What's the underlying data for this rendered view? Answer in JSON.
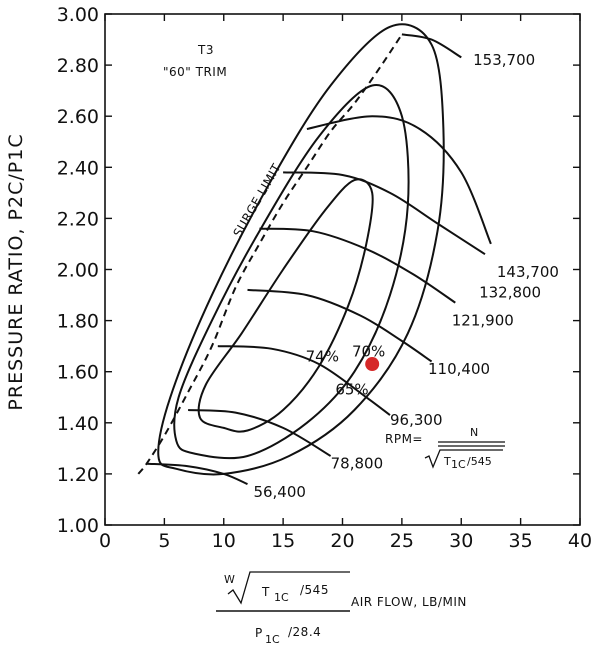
{
  "chart_data": {
    "type": "line",
    "title": "",
    "ylabel": "PRESSURE RATIO, P2C/P1C",
    "xlabel": {
      "main": "AIR FLOW, LB/MIN",
      "numerator_w": "W",
      "numerator_t": "T",
      "numerator_t_sub": "1C",
      "numerator_divisor": "/545",
      "denominator_p": "P",
      "denominator_p_sub": "1C",
      "denominator_divisor": "/28.4"
    },
    "xlim": [
      0,
      40
    ],
    "ylim": [
      1.0,
      3.0
    ],
    "x_ticks": [
      "0",
      "5",
      "10",
      "15",
      "20",
      "25",
      "30",
      "35",
      "40"
    ],
    "y_ticks": [
      "1.00",
      "1.20",
      "1.40",
      "1.60",
      "1.80",
      "2.00",
      "2.20",
      "2.40",
      "2.60",
      "2.80",
      "3.00"
    ],
    "grid": false,
    "annotations": {
      "compressor_line1": "T3",
      "compressor_line2": "\"60\" TRIM",
      "surge_label": "SURGE LIMIT",
      "rpm_lhs": "RPM=",
      "rpm_numerator": "N",
      "rpm_denominator_t": "T",
      "rpm_denominator_sub": "1C",
      "rpm_denominator_divisor": "/545"
    },
    "surge_limit": [
      [
        2.8,
        1.2
      ],
      [
        3.5,
        1.24
      ],
      [
        5,
        1.35
      ],
      [
        7,
        1.52
      ],
      [
        9,
        1.7
      ],
      [
        11,
        1.93
      ],
      [
        13,
        2.1
      ],
      [
        15,
        2.26
      ],
      [
        17,
        2.4
      ],
      [
        19,
        2.54
      ],
      [
        21,
        2.65
      ],
      [
        23,
        2.78
      ],
      [
        25,
        2.92
      ]
    ],
    "speed_lines": [
      {
        "label": "56,400",
        "points": [
          [
            3.5,
            1.24
          ],
          [
            7,
            1.23
          ],
          [
            10,
            1.2
          ],
          [
            12,
            1.16
          ]
        ],
        "label_at": [
          12.5,
          1.13
        ]
      },
      {
        "label": "78,800",
        "points": [
          [
            7,
            1.45
          ],
          [
            11,
            1.44
          ],
          [
            15,
            1.38
          ],
          [
            19,
            1.27
          ]
        ],
        "label_at": [
          19,
          1.24
        ]
      },
      {
        "label": "96,300",
        "points": [
          [
            9.5,
            1.7
          ],
          [
            14,
            1.69
          ],
          [
            18,
            1.63
          ],
          [
            22,
            1.5
          ],
          [
            24,
            1.43
          ]
        ],
        "label_at": [
          24,
          1.41
        ]
      },
      {
        "label": "110,400",
        "points": [
          [
            12,
            1.92
          ],
          [
            17,
            1.9
          ],
          [
            21.5,
            1.82
          ],
          [
            25,
            1.72
          ],
          [
            27.5,
            1.64
          ]
        ],
        "label_at": [
          27.2,
          1.61
        ]
      },
      {
        "label": "121,900",
        "points": [
          [
            13,
            2.16
          ],
          [
            17.5,
            2.15
          ],
          [
            22,
            2.08
          ],
          [
            26,
            1.98
          ],
          [
            29.5,
            1.87
          ]
        ],
        "label_at": [
          29.2,
          1.8
        ]
      },
      {
        "label": "132,800",
        "points": [
          [
            15,
            2.38
          ],
          [
            20,
            2.37
          ],
          [
            24,
            2.3
          ],
          [
            28,
            2.18
          ],
          [
            32,
            2.06
          ]
        ],
        "label_at": [
          31.5,
          1.91
        ]
      },
      {
        "label": "143,700",
        "points": [
          [
            17,
            2.55
          ],
          [
            22.5,
            2.6
          ],
          [
            26.5,
            2.55
          ],
          [
            30,
            2.38
          ],
          [
            32.5,
            2.1
          ]
        ],
        "label_at": [
          33,
          1.99
        ]
      },
      {
        "label": "153,700",
        "points": [
          [
            25,
            2.92
          ],
          [
            27.5,
            2.9
          ],
          [
            30,
            2.83
          ]
        ],
        "label_at": [
          31,
          2.82
        ]
      }
    ],
    "efficiency_islands": [
      {
        "label": "74%",
        "points": [
          [
            10,
            1.38
          ],
          [
            8,
            1.42
          ],
          [
            8.5,
            1.55
          ],
          [
            11.5,
            1.75
          ],
          [
            15,
            2.0
          ],
          [
            18.5,
            2.23
          ],
          [
            21,
            2.35
          ],
          [
            22.5,
            2.3
          ],
          [
            22,
            2.1
          ],
          [
            20.5,
            1.86
          ],
          [
            18,
            1.62
          ],
          [
            15,
            1.45
          ],
          [
            12,
            1.37
          ],
          [
            10,
            1.38
          ]
        ],
        "label_at": [
          18.3,
          1.64
        ]
      },
      {
        "label": "70%",
        "points": [
          [
            7.5,
            1.28
          ],
          [
            6,
            1.33
          ],
          [
            6.2,
            1.5
          ],
          [
            9,
            1.8
          ],
          [
            13,
            2.15
          ],
          [
            18,
            2.52
          ],
          [
            22.5,
            2.72
          ],
          [
            25,
            2.6
          ],
          [
            25.5,
            2.25
          ],
          [
            24,
            1.9
          ],
          [
            21,
            1.6
          ],
          [
            17,
            1.4
          ],
          [
            12,
            1.27
          ],
          [
            7.5,
            1.28
          ]
        ],
        "label_at": [
          22.2,
          1.66
        ]
      },
      {
        "label": "65%",
        "points": [
          [
            6,
            1.22
          ],
          [
            4.5,
            1.27
          ],
          [
            5.5,
            1.5
          ],
          [
            9,
            1.9
          ],
          [
            14,
            2.35
          ],
          [
            19,
            2.72
          ],
          [
            24,
            2.95
          ],
          [
            27.5,
            2.88
          ],
          [
            28.5,
            2.55
          ],
          [
            28,
            2.15
          ],
          [
            25.5,
            1.75
          ],
          [
            21,
            1.45
          ],
          [
            15.5,
            1.27
          ],
          [
            10,
            1.2
          ],
          [
            6,
            1.22
          ]
        ],
        "label_at": [
          20.8,
          1.51
        ]
      }
    ],
    "operating_point": {
      "x": 22.5,
      "y": 1.63,
      "color": "#d62828"
    }
  }
}
